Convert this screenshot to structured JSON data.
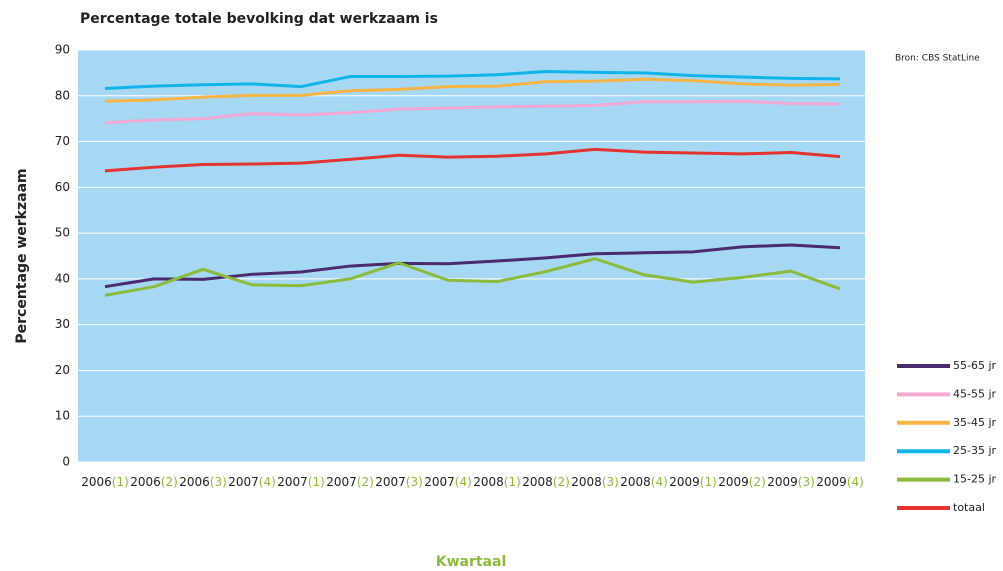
{
  "chart_data": {
    "type": "line",
    "title": "Percentage totale bevolking dat werkzaam is",
    "source": "Bron: CBS StatLine",
    "y_label": "Percentage werkzaam",
    "x_label": "Kwartaal",
    "categories": [
      "2006(1)",
      "2006(2)",
      "2006(3)",
      "2007(4)",
      "2007(1)",
      "2007(2)",
      "2007(3)",
      "2007(4)",
      "2008(1)",
      "2008(2)",
      "2008(3)",
      "2008(4)",
      "2009(1)",
      "2009(2)",
      "2009(3)",
      "2009(4)"
    ],
    "series": [
      {
        "name": "55-65 jr",
        "color": "#4b2a6e",
        "values": [
          38.3,
          40,
          39.9,
          41,
          41.5,
          42.8,
          43.4,
          43.3,
          43.9,
          44.6,
          45.5,
          45.7,
          45.9,
          47,
          47.4,
          46.8
        ]
      },
      {
        "name": "45-55 jr",
        "color": "#f4a8d4",
        "values": [
          74.1,
          74.7,
          75,
          76.1,
          75.8,
          76.3,
          77.1,
          77.3,
          77.6,
          77.7,
          77.9,
          78.7,
          78.7,
          78.8,
          78.3,
          78.2
        ]
      },
      {
        "name": "35-45 jr",
        "color": "#f5b443",
        "values": [
          78.8,
          79.1,
          79.7,
          80.1,
          80.1,
          81.1,
          81.4,
          82,
          82.1,
          83.1,
          83.2,
          83.6,
          83.3,
          82.6,
          82.3,
          82.5
        ]
      },
      {
        "name": "25-35 jr",
        "color": "#10b4e8",
        "values": [
          81.6,
          82.1,
          82.4,
          82.6,
          82,
          84.2,
          84.2,
          84.3,
          84.6,
          85.3,
          85.1,
          85,
          84.4,
          84.1,
          83.8,
          83.7
        ]
      },
      {
        "name": "15-25 jr",
        "color": "#8cbb3c",
        "values": [
          36.4,
          38.3,
          42.1,
          38.7,
          38.5,
          40,
          43.5,
          39.7,
          39.4,
          41.6,
          44.4,
          40.9,
          39.3,
          40.3,
          41.7,
          37.8
        ]
      },
      {
        "name": "totaal",
        "color": "#e3342f",
        "values": [
          63.6,
          64.4,
          65,
          65.1,
          65.3,
          66.1,
          67,
          66.6,
          66.8,
          67.3,
          68.3,
          67.7,
          67.5,
          67.3,
          67.6,
          66.7
        ]
      }
    ],
    "ylim": [
      0,
      90
    ],
    "yticks": [
      0,
      10,
      20,
      30,
      40,
      50,
      60,
      70,
      80,
      90
    ],
    "grid": true,
    "plot_background": "#a6d8f4",
    "grid_color": "#ffffff",
    "x_label_color": "#8cbb3c",
    "quarter_color": "#8cbb3c",
    "legend": "right"
  }
}
